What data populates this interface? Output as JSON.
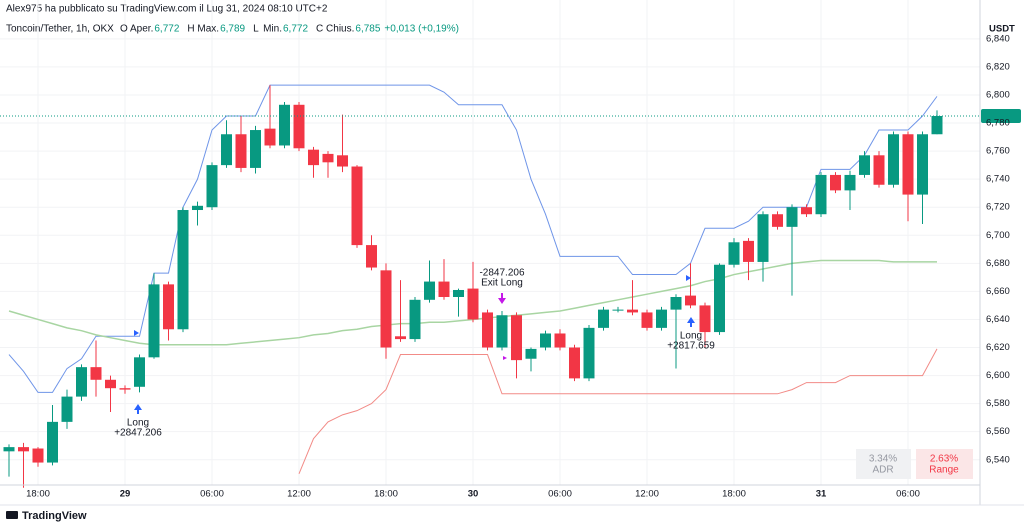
{
  "header": {
    "author": "Alex975 ha pubblicato su TradingView.com il Lug 31, 2024 08:10 UTC+2",
    "symbol": "Toncoin/Tether, 1h, OKX",
    "ohlc": [
      {
        "key": "O",
        "label": "Aper.",
        "value": "6,772"
      },
      {
        "key": "H",
        "label": "Max.",
        "value": "6,789"
      },
      {
        "key": "L",
        "label": "Min.",
        "value": "6,772"
      },
      {
        "key": "C",
        "label": "Chius.",
        "value": "6,785"
      }
    ],
    "change": "+0,013 (+0,19%)"
  },
  "footer": {
    "brand": "TradingView"
  },
  "chart_data": {
    "type": "candlestick",
    "currency": "USDT",
    "up_color": "#089981",
    "down_color": "#f23645",
    "open": [
      6.546,
      6.549,
      6.548,
      6.538,
      6.567,
      6.585,
      6.606,
      6.597,
      6.591,
      6.592,
      6.613,
      6.665,
      6.633,
      6.718,
      6.72,
      6.75,
      6.772,
      6.748,
      6.776,
      6.764,
      6.793,
      6.761,
      6.758,
      6.757,
      6.749,
      6.693,
      6.675,
      6.628,
      6.626,
      6.654,
      6.667,
      6.656,
      6.662,
      6.645,
      6.62,
      6.643,
      6.612,
      6.62,
      6.63,
      6.62,
      6.598,
      6.634,
      6.647,
      6.647,
      6.645,
      6.634,
      6.647,
      6.657,
      6.65,
      6.631,
      6.679,
      6.696,
      6.681,
      6.715,
      6.706,
      6.72,
      6.715,
      6.743,
      6.732,
      6.743,
      6.757,
      6.736,
      6.772,
      6.729,
      6.772
    ],
    "high": [
      6.551,
      6.552,
      6.549,
      6.579,
      6.59,
      6.608,
      6.625,
      6.6,
      6.593,
      6.615,
      6.673,
      6.667,
      6.72,
      6.724,
      6.752,
      6.782,
      6.785,
      6.778,
      6.807,
      6.795,
      6.795,
      6.763,
      6.76,
      6.786,
      6.75,
      6.7,
      6.68,
      6.668,
      6.656,
      6.682,
      6.683,
      6.662,
      6.681,
      6.647,
      6.646,
      6.645,
      6.62,
      6.632,
      6.633,
      6.622,
      6.636,
      6.649,
      6.649,
      6.668,
      6.647,
      6.649,
      6.658,
      6.68,
      6.652,
      6.68,
      6.698,
      6.698,
      6.717,
      6.717,
      6.722,
      6.722,
      6.745,
      6.745,
      6.746,
      6.76,
      6.76,
      6.774,
      6.774,
      6.774,
      6.789
    ],
    "low": [
      6.528,
      6.52,
      6.535,
      6.536,
      6.562,
      6.582,
      6.585,
      6.574,
      6.587,
      6.588,
      6.612,
      6.625,
      6.631,
      6.707,
      6.718,
      6.748,
      6.745,
      6.744,
      6.762,
      6.762,
      6.76,
      6.741,
      6.741,
      6.745,
      6.691,
      6.675,
      6.612,
      6.624,
      6.624,
      6.652,
      6.654,
      6.642,
      6.638,
      6.618,
      6.618,
      6.598,
      6.603,
      6.618,
      6.618,
      6.596,
      6.596,
      6.632,
      6.645,
      6.643,
      6.632,
      6.632,
      6.605,
      6.648,
      6.62,
      6.629,
      6.677,
      6.668,
      6.667,
      6.704,
      6.657,
      6.713,
      6.713,
      6.73,
      6.718,
      6.741,
      6.734,
      6.734,
      6.71,
      6.708,
      6.772
    ],
    "close": [
      6.549,
      6.546,
      6.538,
      6.567,
      6.585,
      6.606,
      6.597,
      6.591,
      6.59,
      6.613,
      6.665,
      6.633,
      6.718,
      6.721,
      6.75,
      6.772,
      6.748,
      6.775,
      6.764,
      6.793,
      6.762,
      6.75,
      6.752,
      6.749,
      6.693,
      6.677,
      6.62,
      6.626,
      6.654,
      6.667,
      6.656,
      6.661,
      6.64,
      6.62,
      6.643,
      6.611,
      6.619,
      6.63,
      6.62,
      6.598,
      6.634,
      6.647,
      6.647,
      6.645,
      6.634,
      6.647,
      6.656,
      6.65,
      6.631,
      6.679,
      6.695,
      6.681,
      6.715,
      6.706,
      6.72,
      6.715,
      6.743,
      6.732,
      6.743,
      6.757,
      6.736,
      6.772,
      6.729,
      6.772,
      6.785
    ],
    "overlays": [
      {
        "color": "#6f95e8",
        "values": [
          6.615,
          6.603,
          6.588,
          6.588,
          6.605,
          6.612,
          6.628,
          6.628,
          6.628,
          6.628,
          6.673,
          6.673,
          6.72,
          6.74,
          6.775,
          6.785,
          6.785,
          6.785,
          6.807,
          6.807,
          6.807,
          6.807,
          6.807,
          6.807,
          6.807,
          6.807,
          6.807,
          6.807,
          6.807,
          6.807,
          6.802,
          6.793,
          6.793,
          6.793,
          6.793,
          6.775,
          6.74,
          6.715,
          6.685,
          6.685,
          6.685,
          6.685,
          6.685,
          6.672,
          6.672,
          6.672,
          6.672,
          6.68,
          6.705,
          6.705,
          6.705,
          6.71,
          6.72,
          6.72,
          6.72,
          6.72,
          6.747,
          6.747,
          6.747,
          6.757,
          6.775,
          6.775,
          6.775,
          6.785,
          6.799
        ]
      },
      {
        "color": "#f28b87",
        "values": [
          null,
          null,
          null,
          null,
          null,
          null,
          null,
          null,
          null,
          null,
          null,
          null,
          null,
          null,
          null,
          null,
          null,
          null,
          null,
          null,
          6.53,
          6.555,
          6.567,
          6.572,
          6.575,
          6.58,
          6.59,
          6.615,
          6.615,
          6.615,
          6.615,
          6.615,
          6.615,
          6.615,
          6.587,
          6.587,
          6.587,
          6.587,
          6.587,
          6.587,
          6.587,
          6.587,
          6.587,
          6.587,
          6.587,
          6.587,
          6.587,
          6.587,
          6.587,
          6.587,
          6.587,
          6.587,
          6.587,
          6.587,
          6.59,
          6.595,
          6.595,
          6.595,
          6.6,
          6.6,
          6.6,
          6.6,
          6.6,
          6.6,
          6.619
        ]
      },
      {
        "color": "#a8d5a2",
        "values": [
          6.646,
          6.643,
          6.64,
          6.637,
          6.634,
          6.632,
          6.629,
          6.627,
          6.625,
          6.623,
          6.622,
          6.622,
          6.622,
          6.622,
          6.622,
          6.622,
          6.623,
          6.624,
          6.625,
          6.626,
          6.627,
          6.629,
          6.63,
          6.632,
          6.633,
          6.635,
          6.636,
          6.637,
          6.637,
          6.638,
          6.638,
          6.639,
          6.64,
          6.641,
          6.642,
          6.643,
          6.644,
          6.645,
          6.646,
          6.648,
          6.65,
          6.652,
          6.654,
          6.656,
          6.658,
          6.66,
          6.662,
          6.664,
          6.667,
          6.669,
          6.672,
          6.674,
          6.676,
          6.678,
          6.68,
          6.681,
          6.682,
          6.682,
          6.682,
          6.682,
          6.682,
          6.681,
          6.681,
          6.681,
          6.681
        ]
      }
    ],
    "last_price": {
      "value": 6.785,
      "label": "6,785"
    },
    "ylim": [
      6.522,
      6.857
    ],
    "yticks": [
      {
        "value": 6.54,
        "label": "6,540"
      },
      {
        "value": 6.56,
        "label": "6,560"
      },
      {
        "value": 6.58,
        "label": "6,580"
      },
      {
        "value": 6.6,
        "label": "6,600"
      },
      {
        "value": 6.62,
        "label": "6,620"
      },
      {
        "value": 6.64,
        "label": "6,640"
      },
      {
        "value": 6.66,
        "label": "6,660"
      },
      {
        "value": 6.68,
        "label": "6,680"
      },
      {
        "value": 6.7,
        "label": "6,700"
      },
      {
        "value": 6.72,
        "label": "6,720"
      },
      {
        "value": 6.74,
        "label": "6,740"
      },
      {
        "value": 6.76,
        "label": "6,760"
      },
      {
        "value": 6.78,
        "label": "6,780"
      },
      {
        "value": 6.8,
        "label": "6,800"
      },
      {
        "value": 6.82,
        "label": "6,820"
      },
      {
        "value": 6.84,
        "label": "6,840"
      }
    ],
    "xticks": [
      {
        "value": 2,
        "label": "18:00"
      },
      {
        "value": 8,
        "label": "29"
      },
      {
        "value": 14,
        "label": "06:00"
      },
      {
        "value": 20,
        "label": "12:00"
      },
      {
        "value": 26,
        "label": "18:00"
      },
      {
        "value": 32,
        "label": "30"
      },
      {
        "value": 38,
        "label": "06:00"
      },
      {
        "value": 44,
        "label": "12:00"
      },
      {
        "value": 50,
        "label": "18:00"
      },
      {
        "value": 56,
        "label": "31"
      },
      {
        "value": 62,
        "label": "06:00"
      }
    ],
    "grid": true,
    "annotations": {
      "long1": [
        "Long",
        "+2847.206"
      ],
      "exit": [
        "-2847.206",
        "Exit Long"
      ],
      "long2": [
        "Long",
        "+2817.659"
      ]
    },
    "stats": [
      {
        "value": "3.34%",
        "label": "ADR"
      },
      {
        "value": "2.63%",
        "label": "Range"
      }
    ]
  }
}
